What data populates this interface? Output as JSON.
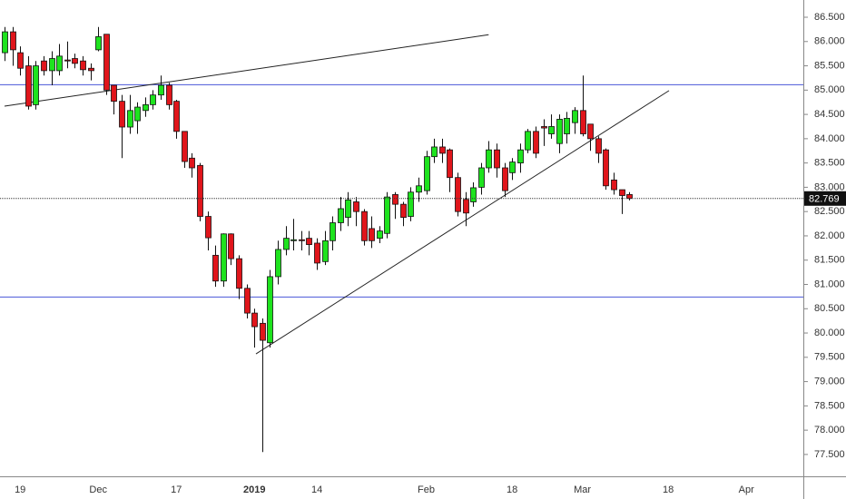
{
  "chart_data": {
    "type": "candlestick",
    "categories": [
      null,
      null,
      "19",
      null,
      null,
      null,
      null,
      null,
      null,
      null,
      null,
      null,
      "Dec",
      null,
      null,
      null,
      null,
      null,
      null,
      null,
      null,
      null,
      "17",
      null,
      null,
      null,
      null,
      null,
      null,
      null,
      null,
      null,
      "2019",
      null,
      null,
      null,
      null,
      null,
      null,
      null,
      "14",
      null,
      null,
      null,
      null,
      null,
      null,
      null,
      null,
      null,
      null,
      null,
      null,
      null,
      "Feb",
      null,
      null,
      null,
      null,
      null,
      null,
      null,
      null,
      null,
      null,
      "18",
      null,
      null,
      null,
      null,
      null,
      null,
      null,
      null,
      "Mar",
      null,
      null,
      null,
      null,
      null,
      null,
      null,
      null,
      null,
      null,
      "18",
      null,
      null,
      null,
      null,
      null,
      null,
      null,
      null,
      null,
      "Apr",
      null,
      null,
      null,
      null,
      null
    ],
    "open": [
      85.77,
      86.2,
      85.77,
      85.5,
      84.7,
      85.6,
      85.4,
      85.4,
      85.62,
      85.65,
      85.6,
      85.45,
      85.83,
      86.15,
      85.1,
      84.77,
      84.24,
      84.37,
      84.58,
      84.7,
      84.9,
      85.1,
      84.77,
      84.15,
      83.6,
      83.45,
      82.4,
      81.6,
      81.07,
      82.04,
      81.53,
      80.92,
      80.41,
      80.2,
      79.8,
      81.16,
      81.72,
      81.9,
      81.92,
      81.95,
      81.85,
      81.47,
      81.9,
      82.27,
      82.38,
      82.7,
      82.5,
      82.15,
      81.95,
      82.05,
      82.85,
      82.65,
      82.4,
      82.9,
      82.93,
      83.63,
      83.83,
      83.77,
      83.2,
      82.75,
      82.7,
      83.0,
      83.4,
      83.77,
      83.4,
      83.3,
      83.5,
      83.77,
      84.15,
      84.25,
      84.1,
      83.9,
      84.1,
      84.33,
      84.58,
      84.3,
      84.0,
      83.77,
      83.15,
      82.95,
      82.85,
      null,
      null,
      null,
      null,
      null,
      null,
      null,
      null,
      null,
      null,
      null,
      null,
      null,
      null,
      null,
      null,
      null,
      null,
      null,
      null
    ],
    "high": [
      86.3,
      86.3,
      85.9,
      85.7,
      85.6,
      85.7,
      85.8,
      85.95,
      86.0,
      85.75,
      85.7,
      85.55,
      86.3,
      86.15,
      85.1,
      84.9,
      84.9,
      84.75,
      84.85,
      85.0,
      85.3,
      85.15,
      84.8,
      84.15,
      83.7,
      83.5,
      82.5,
      81.8,
      82.05,
      82.05,
      81.6,
      81.0,
      80.5,
      80.3,
      81.3,
      81.9,
      82.2,
      82.35,
      82.1,
      82.1,
      81.95,
      82.1,
      82.4,
      82.8,
      82.9,
      82.8,
      82.55,
      82.4,
      82.2,
      82.9,
      82.9,
      82.7,
      83.0,
      83.2,
      83.75,
      84.0,
      84.0,
      83.8,
      83.3,
      82.9,
      83.1,
      83.5,
      83.95,
      83.9,
      83.5,
      83.6,
      83.9,
      84.2,
      84.25,
      84.4,
      84.5,
      84.5,
      84.55,
      84.65,
      85.3,
      84.3,
      84.05,
      83.8,
      83.3,
      82.95,
      82.9,
      null,
      null,
      null,
      null,
      null,
      null,
      null,
      null,
      null,
      null,
      null,
      null,
      null,
      null,
      null,
      null,
      null,
      null,
      null,
      null
    ],
    "low": [
      85.6,
      85.5,
      85.3,
      84.6,
      84.6,
      85.3,
      85.1,
      85.3,
      85.45,
      85.45,
      85.3,
      85.2,
      85.8,
      84.9,
      84.5,
      83.6,
      84.1,
      84.1,
      84.45,
      84.6,
      84.8,
      84.6,
      84.0,
      83.4,
      83.2,
      82.3,
      81.7,
      80.95,
      80.95,
      81.4,
      80.7,
      80.3,
      79.7,
      77.55,
      79.7,
      81.0,
      81.6,
      81.7,
      81.7,
      81.6,
      81.3,
      81.4,
      81.7,
      82.1,
      82.2,
      82.2,
      81.8,
      81.75,
      81.85,
      81.95,
      82.35,
      82.2,
      82.3,
      82.7,
      82.85,
      83.5,
      83.5,
      82.9,
      82.4,
      82.2,
      82.6,
      82.85,
      83.3,
      83.2,
      82.8,
      83.15,
      83.3,
      83.7,
      83.6,
      83.85,
      84.0,
      83.7,
      83.9,
      84.1,
      84.05,
      83.75,
      83.5,
      82.95,
      82.85,
      82.45,
      82.73,
      null,
      null,
      null,
      null,
      null,
      null,
      null,
      null,
      null,
      null,
      null,
      null,
      null,
      null,
      null,
      null,
      null,
      null,
      null,
      null
    ],
    "close": [
      86.2,
      85.83,
      85.45,
      84.67,
      85.5,
      85.4,
      85.65,
      85.7,
      85.6,
      85.55,
      85.42,
      85.4,
      86.1,
      85.0,
      84.77,
      84.24,
      84.58,
      84.65,
      84.7,
      84.9,
      85.1,
      84.7,
      84.15,
      83.53,
      83.4,
      82.4,
      81.96,
      81.07,
      82.04,
      81.53,
      80.92,
      80.41,
      80.13,
      79.85,
      81.16,
      81.72,
      81.95,
      81.92,
      81.9,
      81.82,
      81.44,
      81.9,
      82.27,
      82.56,
      82.74,
      82.5,
      81.9,
      81.9,
      82.1,
      82.8,
      82.65,
      82.38,
      82.9,
      83.03,
      83.63,
      83.83,
      83.7,
      83.2,
      82.5,
      82.47,
      82.99,
      83.4,
      83.77,
      83.4,
      82.93,
      83.52,
      83.77,
      84.15,
      83.7,
      84.22,
      84.25,
      84.4,
      84.42,
      84.58,
      84.1,
      84.0,
      83.7,
      83.03,
      82.95,
      82.83,
      82.77,
      null,
      null,
      null,
      null,
      null,
      null,
      null,
      null,
      null,
      null,
      null,
      null,
      null,
      null,
      null,
      null,
      null,
      null,
      null,
      null
    ],
    "up_color": "#1ee31e",
    "down_color": "#e0151b",
    "xlim": [
      -0.58,
      102.3
    ],
    "ylim": [
      77.05,
      86.855
    ],
    "yticks": [
      {
        "value": 77.5,
        "label": "77.500"
      },
      {
        "value": 78,
        "label": "78.000"
      },
      {
        "value": 78.5,
        "label": "78.500"
      },
      {
        "value": 79,
        "label": "79.000"
      },
      {
        "value": 79.5,
        "label": "79.500"
      },
      {
        "value": 80,
        "label": "80.000"
      },
      {
        "value": 80.5,
        "label": "80.500"
      },
      {
        "value": 81,
        "label": "81.000"
      },
      {
        "value": 81.5,
        "label": "81.500"
      },
      {
        "value": 82,
        "label": "82.000"
      },
      {
        "value": 82.5,
        "label": "82.500"
      },
      {
        "value": 83,
        "label": "83.000"
      },
      {
        "value": 83.5,
        "label": "83.500"
      },
      {
        "value": 84,
        "label": "84.000"
      },
      {
        "value": 84.5,
        "label": "84.500"
      },
      {
        "value": 85,
        "label": "85.000"
      },
      {
        "value": 85.5,
        "label": "85.500"
      },
      {
        "value": 86,
        "label": "86.000"
      },
      {
        "value": 86.5,
        "label": "86.500"
      }
    ],
    "hlines": [
      85.12,
      80.75
    ],
    "hline_color": "#4a57d8",
    "trendlines": [
      {
        "x": [
          0,
          62
        ],
        "y": [
          84.67,
          86.14
        ]
      },
      {
        "x": [
          32.2,
          85.1
        ],
        "y": [
          79.57,
          84.99
        ]
      }
    ],
    "last_price": 82.769
  }
}
